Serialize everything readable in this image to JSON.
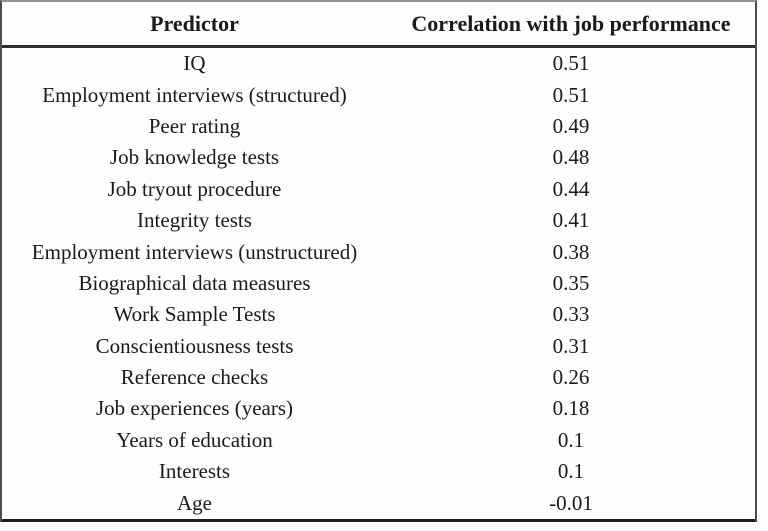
{
  "table": {
    "columns": [
      {
        "label": "Predictor"
      },
      {
        "label": "Correlation with job performance"
      }
    ],
    "rows": [
      {
        "predictor": "IQ",
        "correlation": "0.51"
      },
      {
        "predictor": "Employment interviews (structured)",
        "correlation": "0.51"
      },
      {
        "predictor": "Peer rating",
        "correlation": "0.49"
      },
      {
        "predictor": "Job knowledge tests",
        "correlation": "0.48"
      },
      {
        "predictor": "Job tryout procedure",
        "correlation": "0.44"
      },
      {
        "predictor": "Integrity tests",
        "correlation": "0.41"
      },
      {
        "predictor": "Employment interviews (unstructured)",
        "correlation": "0.38"
      },
      {
        "predictor": "Biographical data measures",
        "correlation": "0.35"
      },
      {
        "predictor": "Work Sample Tests",
        "correlation": "0.33"
      },
      {
        "predictor": "Conscientiousness tests",
        "correlation": "0.31"
      },
      {
        "predictor": "Reference checks",
        "correlation": "0.26"
      },
      {
        "predictor": "Job experiences (years)",
        "correlation": "0.18"
      },
      {
        "predictor": "Years of education",
        "correlation": "0.1"
      },
      {
        "predictor": "Interests",
        "correlation": "0.1"
      },
      {
        "predictor": "Age",
        "correlation": "-0.01"
      }
    ]
  },
  "colors": {
    "text": "#1a1a1a",
    "border_top": "#919191",
    "border_sides": "#4d4d4d",
    "header_rule": "#2e2e2e",
    "border_bottom": "#1f1f1f",
    "background": "#fdfdfd"
  },
  "chart_data": {
    "type": "table",
    "title": "",
    "columns": [
      "Predictor",
      "Correlation with job performance"
    ],
    "rows": [
      [
        "IQ",
        0.51
      ],
      [
        "Employment interviews (structured)",
        0.51
      ],
      [
        "Peer rating",
        0.49
      ],
      [
        "Job knowledge tests",
        0.48
      ],
      [
        "Job tryout procedure",
        0.44
      ],
      [
        "Integrity tests",
        0.41
      ],
      [
        "Employment interviews (unstructured)",
        0.38
      ],
      [
        "Biographical data measures",
        0.35
      ],
      [
        "Work Sample Tests",
        0.33
      ],
      [
        "Conscientiousness tests",
        0.31
      ],
      [
        "Reference checks",
        0.26
      ],
      [
        "Job experiences (years)",
        0.18
      ],
      [
        "Years of education",
        0.1
      ],
      [
        "Interests",
        0.1
      ],
      [
        "Age",
        -0.01
      ]
    ]
  }
}
